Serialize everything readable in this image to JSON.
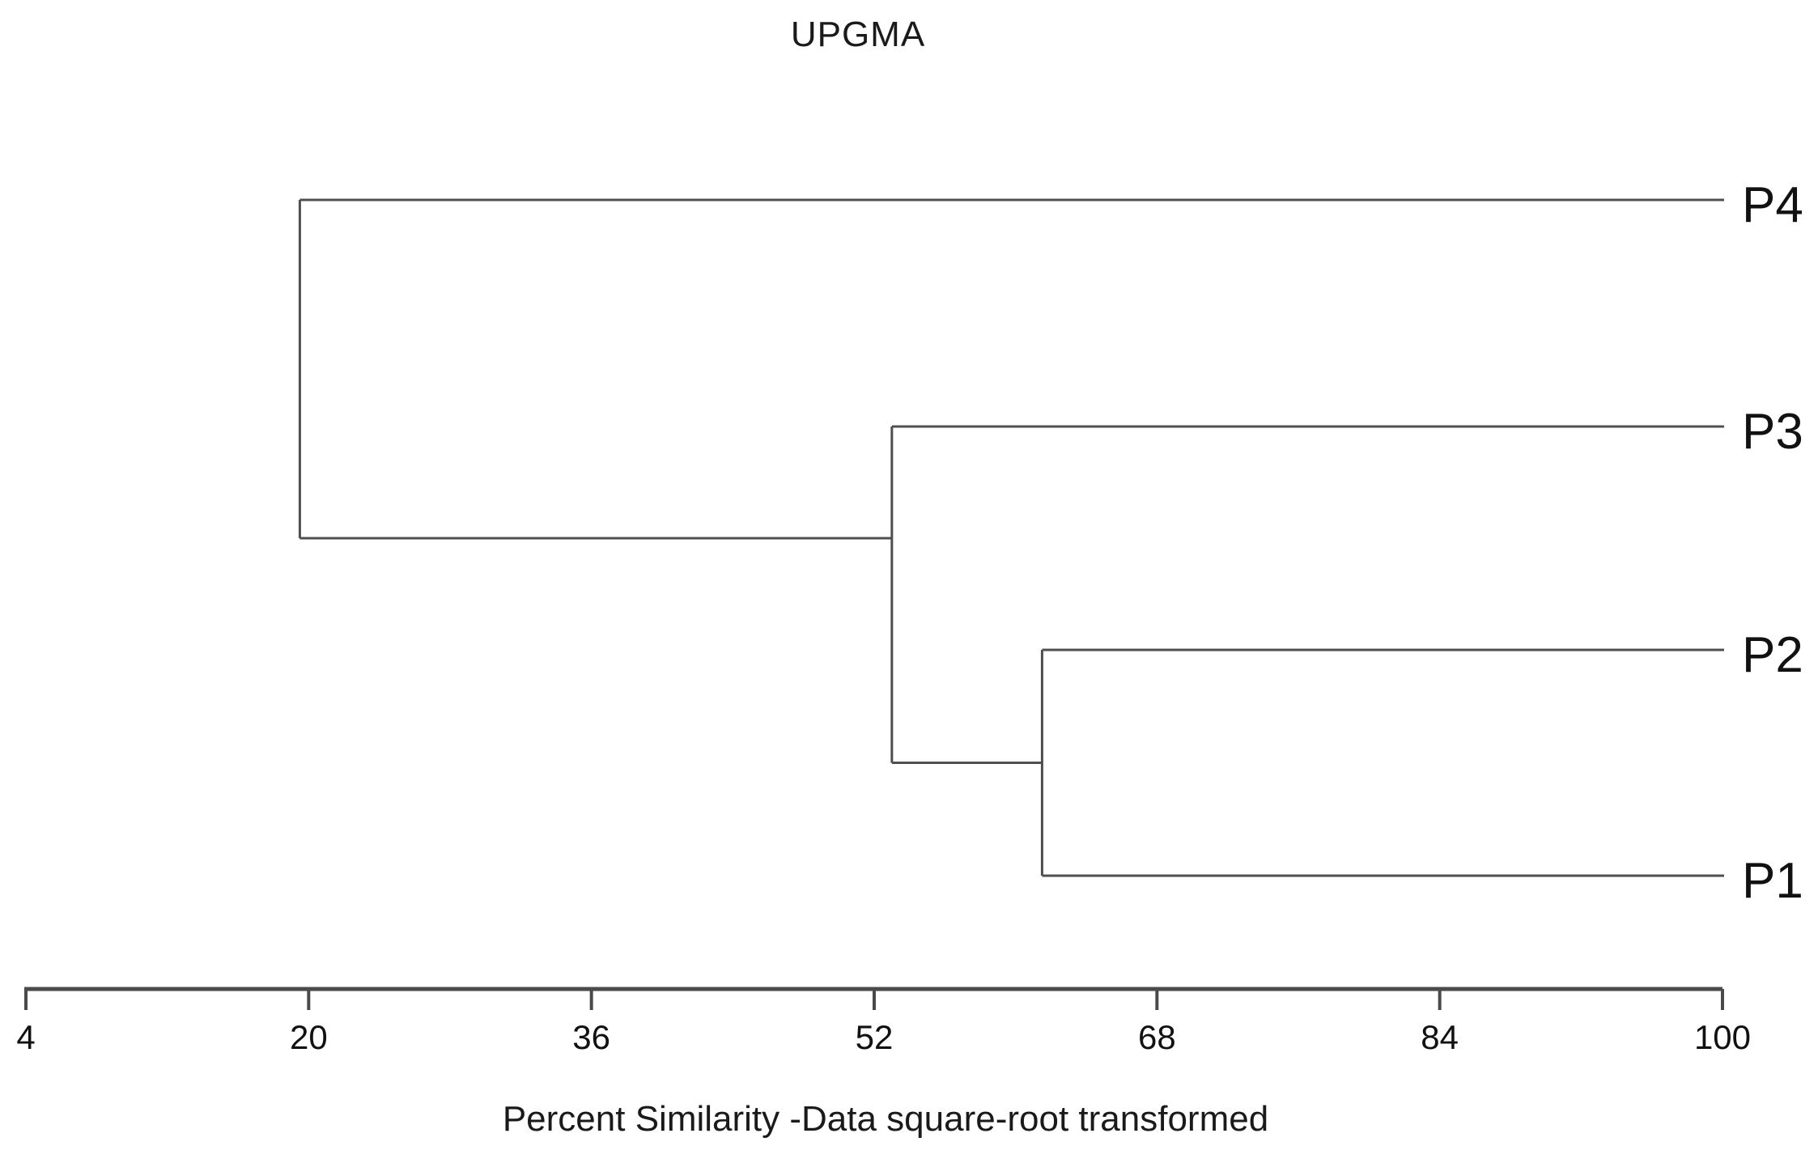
{
  "title": "UPGMA",
  "chart_data": {
    "type": "dendrogram",
    "orientation": "horizontal",
    "title": "UPGMA",
    "xlabel": "Percent Similarity -Data square-root transformed",
    "leaves": [
      "P4",
      "P3",
      "P2",
      "P1"
    ],
    "leaf_similarity": 100,
    "x_axis": {
      "min": 4,
      "max": 100,
      "ticks": [
        4,
        20,
        36,
        52,
        68,
        84,
        100
      ]
    },
    "merges": [
      {
        "members": [
          "P1",
          "P2"
        ],
        "similarity": 61.5
      },
      {
        "members": [
          "P1+P2",
          "P3"
        ],
        "similarity": 53
      },
      {
        "members": [
          "P1+P2+P3",
          "P4"
        ],
        "similarity": 19.5
      }
    ],
    "grid": false,
    "legend": false,
    "line_color": "#4f4f51",
    "axis_color": "#4a4a4a",
    "text_color": "#111111",
    "background": "#ffffff"
  }
}
